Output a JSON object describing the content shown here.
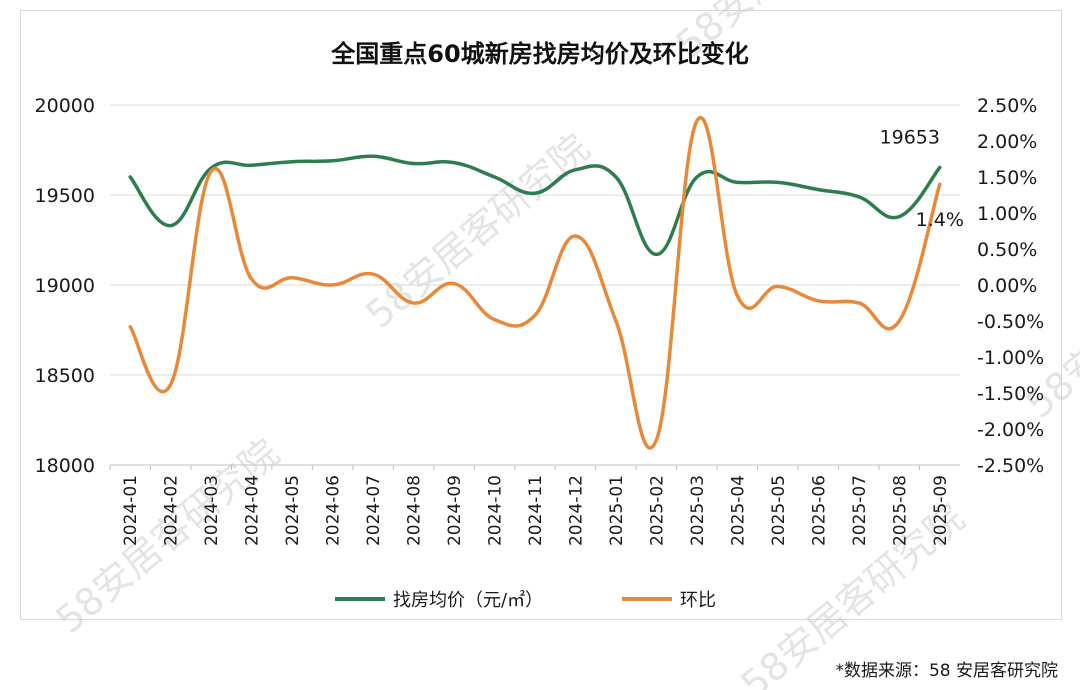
{
  "chart_data": {
    "type": "line",
    "title": "全国重点60城新房找房均价及环比变化",
    "categories": [
      "2024-01",
      "2024-02",
      "2024-03",
      "2024-04",
      "2024-05",
      "2024-06",
      "2024-07",
      "2024-08",
      "2024-09",
      "2024-10",
      "2024-11",
      "2024-12",
      "2025-01",
      "2025-02",
      "2025-03",
      "2025-04",
      "2025-05",
      "2025-06",
      "2025-07",
      "2025-08",
      "2025-09"
    ],
    "series": [
      {
        "name": "找房均价（元/㎡）",
        "axis": "left",
        "color": "#2e7d4f",
        "values": [
          19600,
          19330,
          19650,
          19665,
          19685,
          19690,
          19715,
          19675,
          19680,
          19600,
          19510,
          19640,
          19600,
          19170,
          19600,
          19570,
          19570,
          19530,
          19490,
          19380,
          19653
        ]
      },
      {
        "name": "环比",
        "axis": "right",
        "color": "#e8893a",
        "values": [
          -0.58,
          -1.38,
          1.58,
          0.08,
          0.1,
          0.0,
          0.15,
          -0.25,
          0.02,
          -0.48,
          -0.42,
          0.68,
          -0.5,
          -2.15,
          2.28,
          -0.15,
          -0.02,
          -0.22,
          -0.25,
          -0.5,
          1.4
        ]
      }
    ],
    "ylim_left": [
      18000,
      20000
    ],
    "yticks_left": [
      "20000",
      "19500",
      "19000",
      "18500",
      "18000"
    ],
    "ylim_right": [
      -2.5,
      2.5
    ],
    "yticks_right": [
      "2.50%",
      "2.00%",
      "1.50%",
      "1.00%",
      "0.50%",
      "0.00%",
      "-0.50%",
      "-1.00%",
      "-1.50%",
      "-2.00%",
      "-2.50%"
    ],
    "annotations": [
      {
        "series": 0,
        "index": 20,
        "text": "19653"
      },
      {
        "series": 1,
        "index": 20,
        "text": "1.4%"
      }
    ],
    "grid": true,
    "legend": "bottom"
  },
  "source": "*数据来源：58 安居客研究院",
  "watermark": "58安居客研究院"
}
